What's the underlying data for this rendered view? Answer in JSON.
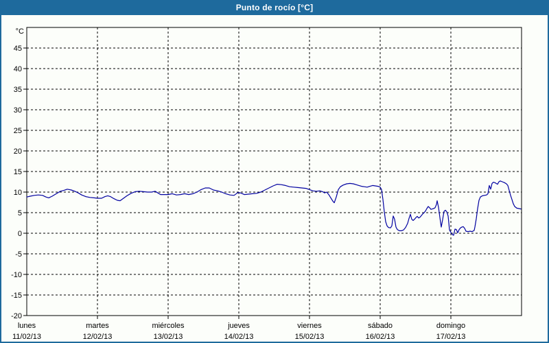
{
  "window": {
    "title": "Punto de rocío [°C]"
  },
  "colors": {
    "accent_blue": "#1e6a9d",
    "background": "#fcfefa",
    "line": "#0000a0",
    "grid": "#000000"
  },
  "chart_data": {
    "type": "line",
    "title": "Punto de rocío [°C]",
    "y_unit_label": "°C",
    "ylim": [
      -20,
      50
    ],
    "y_tick_labels": [
      45,
      40,
      35,
      30,
      25,
      20,
      15,
      10,
      5,
      0,
      -5,
      -10,
      -15,
      -20
    ],
    "grid": "dashed",
    "legend": "none",
    "x_days": [
      {
        "name": "lunes",
        "date": "11/02/13"
      },
      {
        "name": "martes",
        "date": "12/02/13"
      },
      {
        "name": "miércoles",
        "date": "13/02/13"
      },
      {
        "name": "jueves",
        "date": "14/02/13"
      },
      {
        "name": "viernes",
        "date": "15/02/13"
      },
      {
        "name": "sábado",
        "date": "16/02/13"
      },
      {
        "name": "domingo",
        "date": "17/02/13"
      }
    ],
    "series": [
      {
        "name": "Punto de rocío",
        "color": "#0000a0",
        "points": [
          [
            0.0,
            8.8
          ],
          [
            0.049,
            9.0
          ],
          [
            0.107,
            9.2
          ],
          [
            0.165,
            9.3
          ],
          [
            0.223,
            9.2
          ],
          [
            0.272,
            8.8
          ],
          [
            0.311,
            8.6
          ],
          [
            0.359,
            9.0
          ],
          [
            0.417,
            9.6
          ],
          [
            0.476,
            10.2
          ],
          [
            0.524,
            10.4
          ],
          [
            0.573,
            10.7
          ],
          [
            0.631,
            10.5
          ],
          [
            0.68,
            10.2
          ],
          [
            0.728,
            9.8
          ],
          [
            0.777,
            9.3
          ],
          [
            0.835,
            8.9
          ],
          [
            0.893,
            8.7
          ],
          [
            0.951,
            8.6
          ],
          [
            1.0,
            8.5
          ],
          [
            1.058,
            8.5
          ],
          [
            1.107,
            8.9
          ],
          [
            1.146,
            9.1
          ],
          [
            1.184,
            8.9
          ],
          [
            1.233,
            8.4
          ],
          [
            1.282,
            8.0
          ],
          [
            1.32,
            7.9
          ],
          [
            1.369,
            8.5
          ],
          [
            1.417,
            9.1
          ],
          [
            1.476,
            9.7
          ],
          [
            1.534,
            10.1
          ],
          [
            1.592,
            10.2
          ],
          [
            1.65,
            10.1
          ],
          [
            1.709,
            10.0
          ],
          [
            1.767,
            10.0
          ],
          [
            1.816,
            10.2
          ],
          [
            1.854,
            9.8
          ],
          [
            1.893,
            9.4
          ],
          [
            1.942,
            9.4
          ],
          [
            2.0,
            9.4
          ],
          [
            2.058,
            9.6
          ],
          [
            2.117,
            9.3
          ],
          [
            2.175,
            9.4
          ],
          [
            2.233,
            9.6
          ],
          [
            2.291,
            9.4
          ],
          [
            2.35,
            9.6
          ],
          [
            2.408,
            10.0
          ],
          [
            2.466,
            10.6
          ],
          [
            2.524,
            11.0
          ],
          [
            2.583,
            11.0
          ],
          [
            2.641,
            10.5
          ],
          [
            2.699,
            10.3
          ],
          [
            2.757,
            10.0
          ],
          [
            2.816,
            9.6
          ],
          [
            2.874,
            9.3
          ],
          [
            2.932,
            9.2
          ],
          [
            2.981,
            9.8
          ],
          [
            3.0,
            9.9
          ],
          [
            3.039,
            9.7
          ],
          [
            3.078,
            9.4
          ],
          [
            3.136,
            9.5
          ],
          [
            3.194,
            9.6
          ],
          [
            3.252,
            9.7
          ],
          [
            3.311,
            10.0
          ],
          [
            3.369,
            10.5
          ],
          [
            3.427,
            11.0
          ],
          [
            3.485,
            11.5
          ],
          [
            3.544,
            11.9
          ],
          [
            3.602,
            11.8
          ],
          [
            3.66,
            11.6
          ],
          [
            3.718,
            11.3
          ],
          [
            3.777,
            11.2
          ],
          [
            3.835,
            11.1
          ],
          [
            3.893,
            11.0
          ],
          [
            3.951,
            10.9
          ],
          [
            4.0,
            10.6
          ],
          [
            4.049,
            10.3
          ],
          [
            4.097,
            10.2
          ],
          [
            4.146,
            10.3
          ],
          [
            4.184,
            10.1
          ],
          [
            4.214,
            9.8
          ],
          [
            4.243,
            10.0
          ],
          [
            4.272,
            9.4
          ],
          [
            4.301,
            8.6
          ],
          [
            4.33,
            7.8
          ],
          [
            4.35,
            7.4
          ],
          [
            4.379,
            8.8
          ],
          [
            4.408,
            10.6
          ],
          [
            4.437,
            11.3
          ],
          [
            4.476,
            11.7
          ],
          [
            4.524,
            12.0
          ],
          [
            4.573,
            12.1
          ],
          [
            4.621,
            12.0
          ],
          [
            4.66,
            11.8
          ],
          [
            4.699,
            11.6
          ],
          [
            4.738,
            11.4
          ],
          [
            4.777,
            11.3
          ],
          [
            4.816,
            11.2
          ],
          [
            4.854,
            11.4
          ],
          [
            4.893,
            11.6
          ],
          [
            4.932,
            11.5
          ],
          [
            4.971,
            11.4
          ],
          [
            5.0,
            11.2
          ],
          [
            5.019,
            10.6
          ],
          [
            5.039,
            8.2
          ],
          [
            5.058,
            5.2
          ],
          [
            5.078,
            2.8
          ],
          [
            5.097,
            1.8
          ],
          [
            5.117,
            1.4
          ],
          [
            5.146,
            1.3
          ],
          [
            5.165,
            1.8
          ],
          [
            5.184,
            4.2
          ],
          [
            5.204,
            3.4
          ],
          [
            5.223,
            1.5
          ],
          [
            5.243,
            0.9
          ],
          [
            5.272,
            0.6
          ],
          [
            5.301,
            0.6
          ],
          [
            5.33,
            0.8
          ],
          [
            5.359,
            1.4
          ],
          [
            5.388,
            2.4
          ],
          [
            5.408,
            3.6
          ],
          [
            5.427,
            4.6
          ],
          [
            5.447,
            3.4
          ],
          [
            5.466,
            3.1
          ],
          [
            5.485,
            3.4
          ],
          [
            5.505,
            3.8
          ],
          [
            5.524,
            4.1
          ],
          [
            5.544,
            3.7
          ],
          [
            5.563,
            3.9
          ],
          [
            5.583,
            4.3
          ],
          [
            5.602,
            4.7
          ],
          [
            5.621,
            5.0
          ],
          [
            5.641,
            5.4
          ],
          [
            5.66,
            6.0
          ],
          [
            5.68,
            6.5
          ],
          [
            5.699,
            6.2
          ],
          [
            5.718,
            5.8
          ],
          [
            5.738,
            5.9
          ],
          [
            5.757,
            6.0
          ],
          [
            5.777,
            6.2
          ],
          [
            5.796,
            7.0
          ],
          [
            5.806,
            7.9
          ],
          [
            5.825,
            6.3
          ],
          [
            5.845,
            3.8
          ],
          [
            5.864,
            1.5
          ],
          [
            5.883,
            3.2
          ],
          [
            5.903,
            5.3
          ],
          [
            5.922,
            5.6
          ],
          [
            5.942,
            5.2
          ],
          [
            5.961,
            4.2
          ],
          [
            5.981,
            0.8
          ],
          [
            6.0,
            0.2
          ],
          [
            6.019,
            -0.3
          ],
          [
            6.039,
            -0.5
          ],
          [
            6.058,
            1.0
          ],
          [
            6.078,
            0.9
          ],
          [
            6.097,
            0.1
          ],
          [
            6.117,
            0.9
          ],
          [
            6.136,
            1.3
          ],
          [
            6.155,
            1.5
          ],
          [
            6.175,
            1.6
          ],
          [
            6.194,
            1.2
          ],
          [
            6.214,
            0.5
          ],
          [
            6.243,
            0.4
          ],
          [
            6.272,
            0.5
          ],
          [
            6.301,
            0.4
          ],
          [
            6.33,
            0.7
          ],
          [
            6.34,
            1.5
          ],
          [
            6.359,
            3.5
          ],
          [
            6.379,
            6.0
          ],
          [
            6.398,
            8.0
          ],
          [
            6.417,
            8.8
          ],
          [
            6.447,
            9.1
          ],
          [
            6.476,
            9.2
          ],
          [
            6.505,
            9.3
          ],
          [
            6.524,
            9.6
          ],
          [
            6.544,
            11.6
          ],
          [
            6.563,
            10.7
          ],
          [
            6.583,
            12.1
          ],
          [
            6.602,
            12.4
          ],
          [
            6.621,
            12.3
          ],
          [
            6.641,
            12.1
          ],
          [
            6.66,
            11.9
          ],
          [
            6.68,
            12.5
          ],
          [
            6.699,
            12.7
          ],
          [
            6.728,
            12.5
          ],
          [
            6.757,
            12.3
          ],
          [
            6.786,
            12.0
          ],
          [
            6.806,
            11.6
          ],
          [
            6.825,
            10.4
          ],
          [
            6.845,
            9.2
          ],
          [
            6.864,
            8.2
          ],
          [
            6.883,
            7.2
          ],
          [
            6.903,
            6.5
          ],
          [
            6.932,
            6.1
          ],
          [
            6.961,
            6.0
          ],
          [
            6.99,
            5.9
          ]
        ]
      }
    ]
  }
}
